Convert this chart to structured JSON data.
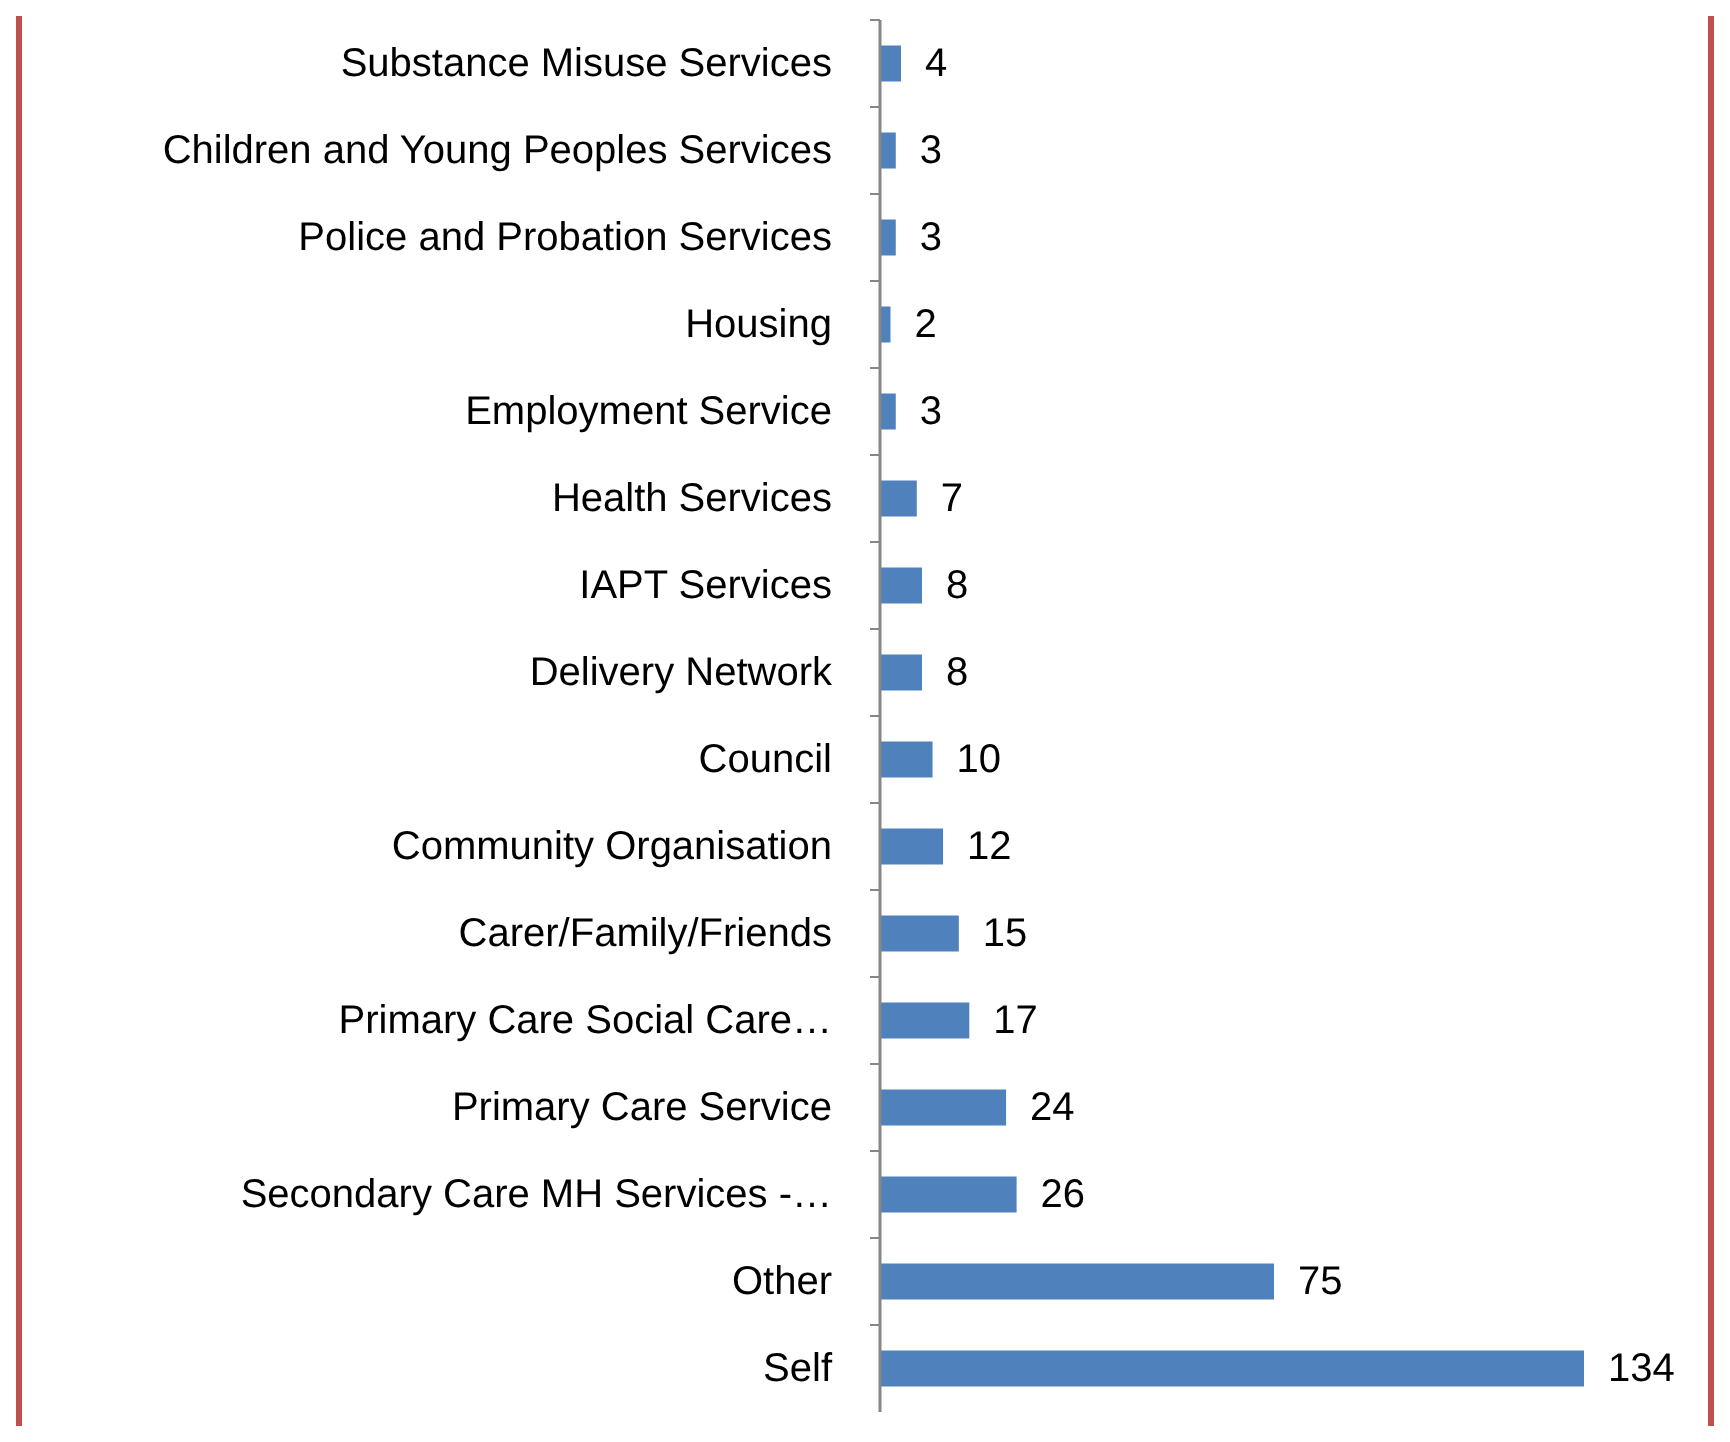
{
  "chart_data": {
    "type": "bar",
    "orientation": "horizontal",
    "categories": [
      "Substance Misuse Services",
      "Children and Young Peoples Services",
      "Police and Probation Services",
      "Housing",
      "Employment Service",
      "Health Services",
      "IAPT Services",
      "Delivery Network",
      "Council",
      "Community Organisation",
      "Carer/Family/Friends",
      "Primary Care Social Care…",
      "Primary Care Service",
      "Secondary Care MH Services -…",
      "Other",
      "Self"
    ],
    "values": [
      4,
      3,
      3,
      2,
      3,
      7,
      8,
      8,
      10,
      12,
      15,
      17,
      24,
      26,
      75,
      134
    ],
    "color": "#4f81bd",
    "data_labels": true
  }
}
